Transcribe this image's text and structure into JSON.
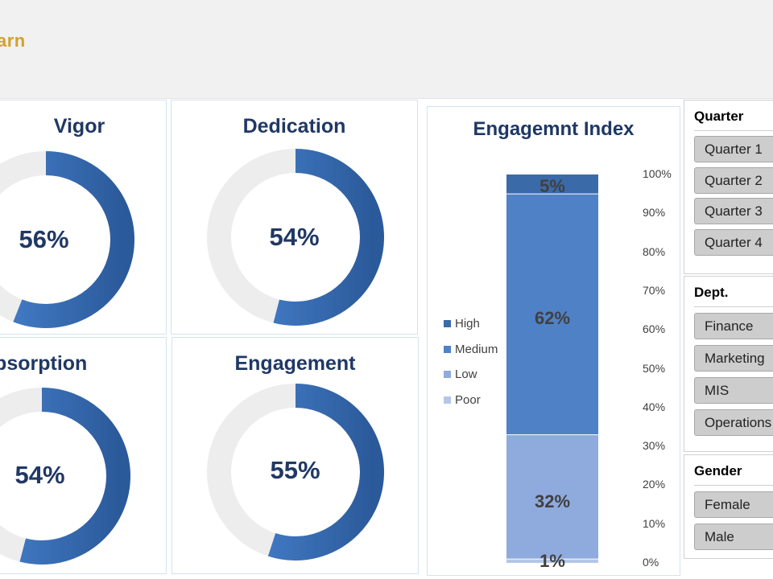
{
  "header": {
    "title": "arn"
  },
  "kpis": [
    {
      "title": "Vigor",
      "value": "56%",
      "pct": 56
    },
    {
      "title": "Dedication",
      "value": "54%",
      "pct": 54
    },
    {
      "title": "Absorption",
      "value": "54%",
      "pct": 54
    },
    {
      "title": "Engagement",
      "value": "55%",
      "pct": 55
    }
  ],
  "chart_data": {
    "type": "bar",
    "title": "Engagemnt Index",
    "stacked": true,
    "orientation": "vertical",
    "categories": [
      ""
    ],
    "series": [
      {
        "name": "Poor",
        "values": [
          1
        ],
        "color": "#b4c7e7",
        "label": "1%"
      },
      {
        "name": "Low",
        "values": [
          32
        ],
        "color": "#8faadc",
        "label": "32%"
      },
      {
        "name": "Medium",
        "values": [
          62
        ],
        "color": "#4f81c6",
        "label": "62%"
      },
      {
        "name": "High",
        "values": [
          5
        ],
        "color": "#3a6aa8",
        "label": "5%"
      }
    ],
    "y_ticks": [
      "0%",
      "10%",
      "20%",
      "30%",
      "40%",
      "50%",
      "60%",
      "70%",
      "80%",
      "90%",
      "100%"
    ],
    "ylim": [
      0,
      100
    ],
    "legend": [
      "High",
      "Medium",
      "Low",
      "Poor"
    ],
    "legend_position": "left",
    "axis_position": "right"
  },
  "slicers": {
    "quarter": {
      "header": "Quarter",
      "items": [
        "Quarter 1",
        "Quarter 2",
        "Quarter 3",
        "Quarter 4"
      ]
    },
    "dept": {
      "header": "Dept.",
      "items": [
        "Finance",
        "Marketing",
        "MIS",
        "Operations"
      ]
    },
    "gender": {
      "header": "Gender",
      "items": [
        "Female",
        "Male"
      ]
    }
  },
  "colors": {
    "ring_fill": "#3a6fb8",
    "ring_track": "#ededed",
    "title": "#203864",
    "header_accent": "#d4a030"
  }
}
